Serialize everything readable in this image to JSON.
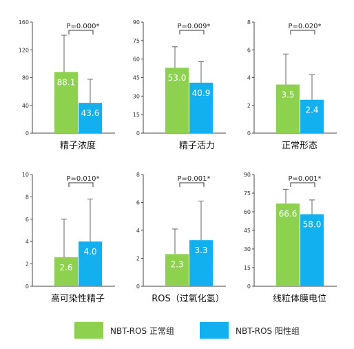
{
  "colors": {
    "normal": "#8ed14f",
    "positive": "#12b0ef",
    "axis": "#444444"
  },
  "legend": [
    {
      "name": "NBT-ROS 正常组",
      "color": "#8ed14f"
    },
    {
      "name": "NBT-ROS 阳性组",
      "color": "#12b0ef"
    }
  ],
  "chart_data": [
    {
      "type": "bar",
      "xlabel": "精子浓度",
      "ylim": [
        0,
        160
      ],
      "ticks": [
        0,
        40,
        80,
        120,
        160
      ],
      "series": [
        {
          "name": "NBT-ROS 正常组",
          "values": [
            88.1
          ],
          "error": [
            53
          ],
          "labels": [
            "88.1"
          ]
        },
        {
          "name": "NBT-ROS 阳性组",
          "values": [
            43.6
          ],
          "error": [
            34
          ],
          "labels": [
            "43.6"
          ]
        }
      ],
      "annotation": "P=0.000*"
    },
    {
      "type": "bar",
      "xlabel": "精子活力",
      "ylim": [
        0,
        90
      ],
      "ticks": [
        0,
        15,
        30,
        45,
        60,
        75,
        90
      ],
      "series": [
        {
          "name": "NBT-ROS 正常组",
          "values": [
            53.0
          ],
          "error": [
            17
          ],
          "labels": [
            "53.0"
          ]
        },
        {
          "name": "NBT-ROS 阳性组",
          "values": [
            40.9
          ],
          "error": [
            17
          ],
          "labels": [
            "40.9"
          ]
        }
      ],
      "annotation": "P=0.009*"
    },
    {
      "type": "bar",
      "xlabel": "正常形态",
      "ylim": [
        0,
        8
      ],
      "ticks": [
        0,
        2,
        4,
        6,
        8
      ],
      "series": [
        {
          "name": "NBT-ROS 正常组",
          "values": [
            3.5
          ],
          "error": [
            2.2
          ],
          "labels": [
            "3.5"
          ]
        },
        {
          "name": "NBT-ROS 阳性组",
          "values": [
            2.4
          ],
          "error": [
            1.8
          ],
          "labels": [
            "2.4"
          ]
        }
      ],
      "annotation": "P=0.020*"
    },
    {
      "type": "bar",
      "xlabel": "高可染性精子",
      "ylim": [
        0,
        10
      ],
      "ticks": [
        0,
        2,
        4,
        6,
        8,
        10
      ],
      "series": [
        {
          "name": "NBT-ROS 正常组",
          "values": [
            2.6
          ],
          "error": [
            3.4
          ],
          "labels": [
            "2.6"
          ]
        },
        {
          "name": "NBT-ROS 阳性组",
          "values": [
            4.0
          ],
          "error": [
            3.8
          ],
          "labels": [
            "4.0"
          ]
        }
      ],
      "annotation": "P=0.010*"
    },
    {
      "type": "bar",
      "xlabel": "ROS（过氧化氢）",
      "ylim": [
        0,
        8
      ],
      "ticks": [
        0,
        2,
        4,
        6,
        8
      ],
      "series": [
        {
          "name": "NBT-ROS 正常组",
          "values": [
            2.3
          ],
          "error": [
            1.8
          ],
          "labels": [
            "2.3"
          ]
        },
        {
          "name": "NBT-ROS 阳性组",
          "values": [
            3.3
          ],
          "error": [
            2.8
          ],
          "labels": [
            "3.3"
          ]
        }
      ],
      "annotation": "P=0.001*"
    },
    {
      "type": "bar",
      "xlabel": "线粒体膜电位",
      "ylim": [
        0,
        90
      ],
      "ticks": [
        0,
        15,
        30,
        45,
        60,
        75,
        90
      ],
      "series": [
        {
          "name": "NBT-ROS 正常组",
          "values": [
            66.6
          ],
          "error": [
            11.5
          ],
          "labels": [
            "66.6"
          ]
        },
        {
          "name": "NBT-ROS 阳性组",
          "values": [
            58.0
          ],
          "error": [
            11.5
          ],
          "labels": [
            "58.0"
          ]
        }
      ],
      "annotation": "P=0.001*"
    }
  ]
}
